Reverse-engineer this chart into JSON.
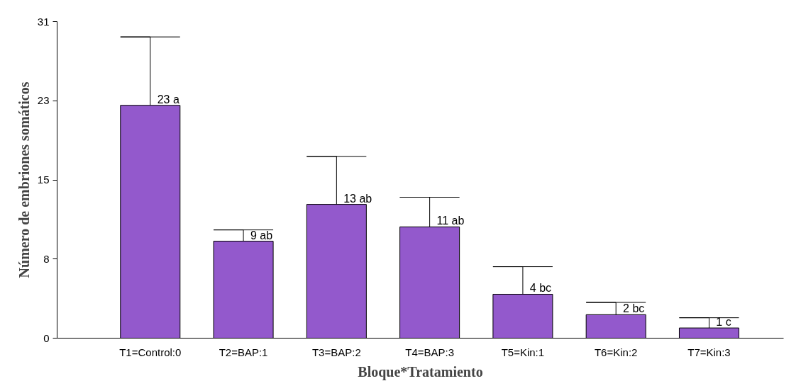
{
  "chart_data": {
    "type": "bar",
    "xlabel": "Bloque*Tratamiento",
    "ylabel": "Número de embriones somáticos",
    "categories": [
      "T1=Control:0",
      "T2=BAP:1",
      "T3=BAP:2",
      "T4=BAP:3",
      "T5=Kin:1",
      "T6=Kin:2",
      "T7=Kin:3"
    ],
    "values": [
      22.8,
      9.5,
      13.1,
      10.9,
      4.3,
      2.3,
      1.0
    ],
    "errors": [
      [
        22.8,
        29.5
      ],
      [
        9.5,
        10.6
      ],
      [
        13.1,
        17.8
      ],
      [
        10.9,
        13.8
      ],
      [
        4.3,
        7.0
      ],
      [
        2.3,
        3.5
      ],
      [
        1.0,
        2.0
      ]
    ],
    "value_labels": [
      "23 a",
      "9 ab",
      "13 ab",
      "11 ab",
      "4 bc",
      "2 bc",
      "1 c"
    ],
    "color": "#9359cc",
    "ylim": [
      0,
      31
    ],
    "yticks": [
      0,
      {
        "value": 7.75,
        "label": "8"
      },
      {
        "value": 15.5,
        "label": "15"
      },
      {
        "value": 23.25,
        "label": "23"
      },
      31
    ],
    "grid": false
  }
}
